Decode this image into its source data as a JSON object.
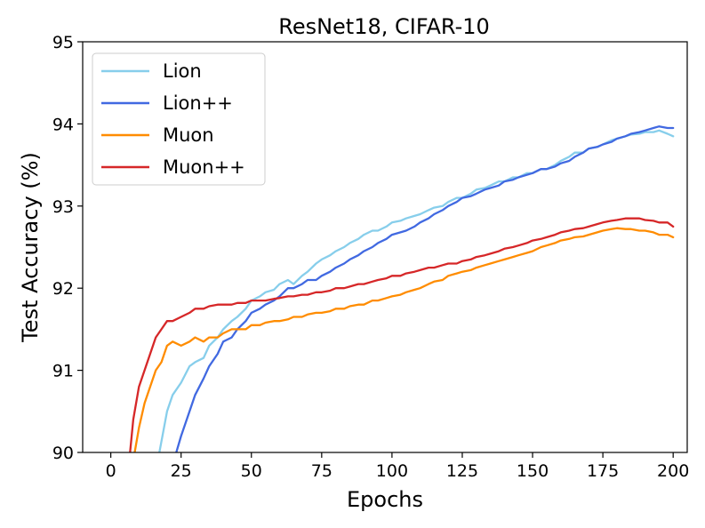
{
  "chart_data": {
    "type": "line",
    "title": "ResNet18, CIFAR-10",
    "xlabel": "Epochs",
    "ylabel": "Test Accuracy (%)",
    "xlim": [
      -10,
      205
    ],
    "ylim": [
      90,
      95
    ],
    "xticks": [
      0,
      25,
      50,
      75,
      100,
      125,
      150,
      175,
      200
    ],
    "yticks": [
      90,
      91,
      92,
      93,
      94,
      95
    ],
    "grid": false,
    "legend_position": "top-left",
    "series": [
      {
        "name": "Lion",
        "color": "#87ceeb",
        "x": [
          15,
          17,
          20,
          22,
          25,
          28,
          30,
          33,
          35,
          38,
          40,
          43,
          45,
          48,
          50,
          53,
          55,
          58,
          60,
          63,
          65,
          68,
          70,
          73,
          75,
          78,
          80,
          83,
          85,
          88,
          90,
          93,
          95,
          98,
          100,
          103,
          105,
          108,
          110,
          113,
          115,
          118,
          120,
          123,
          125,
          128,
          130,
          133,
          135,
          138,
          140,
          143,
          145,
          148,
          150,
          153,
          155,
          158,
          160,
          163,
          165,
          168,
          170,
          173,
          175,
          178,
          180,
          183,
          185,
          188,
          190,
          193,
          195,
          198,
          200
        ],
        "y": [
          89.6,
          89.95,
          90.5,
          90.7,
          90.85,
          91.05,
          91.1,
          91.15,
          91.3,
          91.4,
          91.5,
          91.6,
          91.65,
          91.75,
          91.85,
          91.9,
          91.95,
          91.98,
          92.05,
          92.1,
          92.05,
          92.15,
          92.2,
          92.3,
          92.35,
          92.4,
          92.45,
          92.5,
          92.55,
          92.6,
          92.65,
          92.7,
          92.7,
          92.75,
          92.8,
          92.82,
          92.85,
          92.88,
          92.9,
          92.95,
          92.98,
          93.0,
          93.05,
          93.1,
          93.1,
          93.15,
          93.2,
          93.22,
          93.25,
          93.3,
          93.3,
          93.35,
          93.35,
          93.4,
          93.4,
          93.45,
          93.45,
          93.5,
          93.55,
          93.6,
          93.65,
          93.65,
          93.7,
          93.72,
          93.75,
          93.8,
          93.82,
          93.85,
          93.87,
          93.88,
          93.9,
          93.9,
          93.92,
          93.88,
          93.85
        ]
      },
      {
        "name": "Lion++",
        "color": "#4169e1",
        "x": [
          22,
          25,
          28,
          30,
          33,
          35,
          38,
          40,
          43,
          45,
          48,
          50,
          53,
          55,
          58,
          60,
          63,
          65,
          68,
          70,
          73,
          75,
          78,
          80,
          83,
          85,
          88,
          90,
          93,
          95,
          98,
          100,
          103,
          105,
          108,
          110,
          113,
          115,
          118,
          120,
          123,
          125,
          128,
          130,
          133,
          135,
          138,
          140,
          143,
          145,
          148,
          150,
          153,
          155,
          158,
          160,
          163,
          165,
          168,
          170,
          173,
          175,
          178,
          180,
          183,
          185,
          188,
          190,
          193,
          195,
          198,
          200
        ],
        "y": [
          89.85,
          90.2,
          90.5,
          90.7,
          90.9,
          91.05,
          91.2,
          91.35,
          91.4,
          91.5,
          91.6,
          91.7,
          91.75,
          91.8,
          91.85,
          91.9,
          92.0,
          92.0,
          92.05,
          92.1,
          92.1,
          92.15,
          92.2,
          92.25,
          92.3,
          92.35,
          92.4,
          92.45,
          92.5,
          92.55,
          92.6,
          92.65,
          92.68,
          92.7,
          92.75,
          92.8,
          92.85,
          92.9,
          92.95,
          93.0,
          93.05,
          93.1,
          93.12,
          93.15,
          93.2,
          93.22,
          93.25,
          93.3,
          93.32,
          93.35,
          93.38,
          93.4,
          93.45,
          93.45,
          93.48,
          93.52,
          93.55,
          93.6,
          93.65,
          93.7,
          93.72,
          93.75,
          93.78,
          93.82,
          93.85,
          93.88,
          93.9,
          93.92,
          93.95,
          93.97,
          93.95,
          93.95
        ]
      },
      {
        "name": "Muon",
        "color": "#ff8c00",
        "x": [
          8,
          10,
          12,
          14,
          16,
          18,
          20,
          22,
          25,
          28,
          30,
          33,
          35,
          38,
          40,
          43,
          45,
          48,
          50,
          53,
          55,
          58,
          60,
          63,
          65,
          68,
          70,
          73,
          75,
          78,
          80,
          83,
          85,
          88,
          90,
          93,
          95,
          98,
          100,
          103,
          105,
          108,
          110,
          113,
          115,
          118,
          120,
          123,
          125,
          128,
          130,
          133,
          135,
          138,
          140,
          143,
          145,
          148,
          150,
          153,
          155,
          158,
          160,
          163,
          165,
          168,
          170,
          173,
          175,
          178,
          180,
          183,
          185,
          188,
          190,
          193,
          195,
          198,
          200
        ],
        "y": [
          89.9,
          90.3,
          90.6,
          90.8,
          91.0,
          91.1,
          91.3,
          91.35,
          91.3,
          91.35,
          91.4,
          91.35,
          91.4,
          91.4,
          91.45,
          91.5,
          91.5,
          91.5,
          91.55,
          91.55,
          91.58,
          91.6,
          91.6,
          91.62,
          91.65,
          91.65,
          91.68,
          91.7,
          91.7,
          91.72,
          91.75,
          91.75,
          91.78,
          91.8,
          91.8,
          91.85,
          91.85,
          91.88,
          91.9,
          91.92,
          91.95,
          91.98,
          92.0,
          92.05,
          92.08,
          92.1,
          92.15,
          92.18,
          92.2,
          92.22,
          92.25,
          92.28,
          92.3,
          92.33,
          92.35,
          92.38,
          92.4,
          92.43,
          92.45,
          92.5,
          92.52,
          92.55,
          92.58,
          92.6,
          92.62,
          92.63,
          92.65,
          92.68,
          92.7,
          92.72,
          92.73,
          92.72,
          92.72,
          92.7,
          92.7,
          92.68,
          92.65,
          92.65,
          92.62
        ]
      },
      {
        "name": "Muon++",
        "color": "#d62728",
        "x": [
          6,
          8,
          10,
          12,
          14,
          16,
          18,
          20,
          22,
          25,
          28,
          30,
          33,
          35,
          38,
          40,
          43,
          45,
          48,
          50,
          53,
          55,
          58,
          60,
          63,
          65,
          68,
          70,
          73,
          75,
          78,
          80,
          83,
          85,
          88,
          90,
          93,
          95,
          98,
          100,
          103,
          105,
          108,
          110,
          113,
          115,
          118,
          120,
          123,
          125,
          128,
          130,
          133,
          135,
          138,
          140,
          143,
          145,
          148,
          150,
          153,
          155,
          158,
          160,
          163,
          165,
          168,
          170,
          173,
          175,
          178,
          180,
          183,
          185,
          188,
          190,
          193,
          195,
          198,
          200
        ],
        "y": [
          89.7,
          90.4,
          90.8,
          91.0,
          91.2,
          91.4,
          91.5,
          91.6,
          91.6,
          91.65,
          91.7,
          91.75,
          91.75,
          91.78,
          91.8,
          91.8,
          91.8,
          91.82,
          91.82,
          91.85,
          91.85,
          91.85,
          91.87,
          91.88,
          91.9,
          91.9,
          91.92,
          91.92,
          91.95,
          91.95,
          91.97,
          92.0,
          92.0,
          92.02,
          92.05,
          92.05,
          92.08,
          92.1,
          92.12,
          92.15,
          92.15,
          92.18,
          92.2,
          92.22,
          92.25,
          92.25,
          92.28,
          92.3,
          92.3,
          92.33,
          92.35,
          92.38,
          92.4,
          92.42,
          92.45,
          92.48,
          92.5,
          92.52,
          92.55,
          92.58,
          92.6,
          92.62,
          92.65,
          92.68,
          92.7,
          92.72,
          92.73,
          92.75,
          92.78,
          92.8,
          92.82,
          92.83,
          92.85,
          92.85,
          92.85,
          92.83,
          92.82,
          92.8,
          92.8,
          92.75
        ]
      }
    ]
  }
}
